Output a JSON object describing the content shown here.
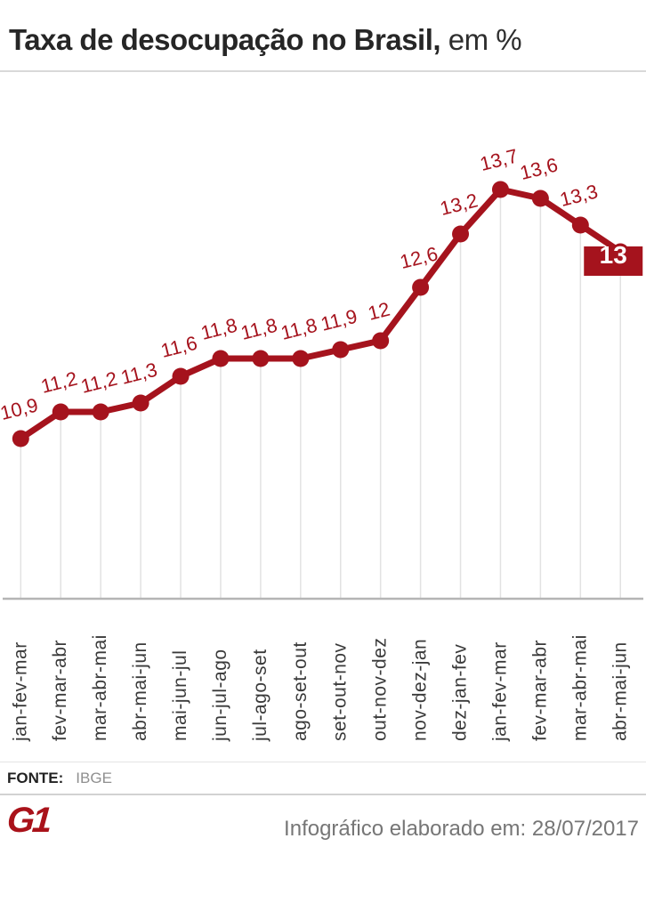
{
  "header": {
    "title_bold": "Taxa de desocupação no Brasil,",
    "title_regular": " em %"
  },
  "chart_data": {
    "type": "line",
    "title": "Taxa de desocupação no Brasil, em %",
    "categories": [
      "jan-fev-mar",
      "fev-mar-abr",
      "mar-abr-mai",
      "abr-mai-jun",
      "mai-jun-jul",
      "jun-jul-ago",
      "jul-ago-set",
      "ago-set-out",
      "set-out-nov",
      "out-nov-dez",
      "nov-dez-jan",
      "dez-jan-fev",
      "jan-fev-mar",
      "fev-mar-abr",
      "mar-abr-mai",
      "abr-mai-jun"
    ],
    "values": [
      10.9,
      11.2,
      11.2,
      11.3,
      11.6,
      11.8,
      11.8,
      11.8,
      11.9,
      12,
      12.6,
      13.2,
      13.7,
      13.6,
      13.3,
      13
    ],
    "value_labels": [
      "10,9",
      "11,2",
      "11,2",
      "11,3",
      "11,6",
      "11,8",
      "11,8",
      "11,8",
      "11,9",
      "12",
      "12,6",
      "13,2",
      "13,7",
      "13,6",
      "13,3",
      "13"
    ],
    "highlight": {
      "index": 15,
      "label": "13"
    },
    "ylim_implied": [
      9.1,
      14.1
    ],
    "xlabel": "",
    "ylabel": "",
    "legend": "none",
    "grid": "drop-lines",
    "line_color": "#a5131d",
    "grid_color": "#e2e2e2",
    "baseline_color": "#b5b5b5",
    "axis_text_color": "#3a3a3a",
    "highlight_text_color": "#ffffff"
  },
  "footer": {
    "source_label": "FONTE:",
    "source_value": "IBGE",
    "logo_text": "G1",
    "credit": "Infográfico elaborado em: 28/07/2017"
  }
}
